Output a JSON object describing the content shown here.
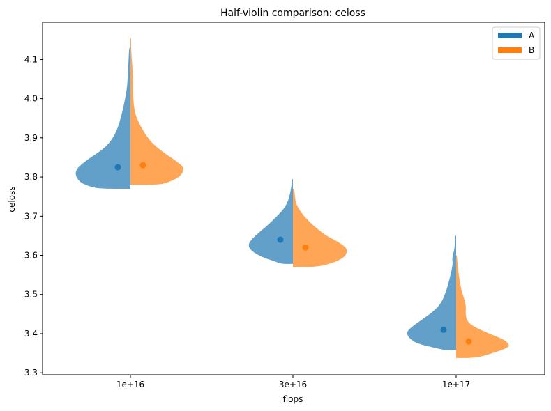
{
  "chart_data": {
    "type": "half-violin",
    "title": "Half-violin comparison: celoss",
    "xlabel": "flops",
    "ylabel": "celoss",
    "categories": [
      "1e+16",
      "3e+16",
      "1e+17"
    ],
    "ylim": [
      3.295,
      4.195
    ],
    "yticks": [
      3.3,
      3.4,
      3.5,
      3.6,
      3.7,
      3.8,
      3.9,
      4.0,
      4.1
    ],
    "ytick_labels": [
      "3.3",
      "3.4",
      "3.5",
      "3.6",
      "3.7",
      "3.8",
      "3.9",
      "4.0",
      "4.1"
    ],
    "grid": false,
    "legend_position": "top-right",
    "series": [
      {
        "name": "A",
        "side": "left",
        "color": "#1f77b4",
        "fill_opacity": 0.7,
        "means": [
          3.825,
          3.64,
          3.41
        ],
        "distributions": [
          {
            "min": 3.77,
            "max": 4.13,
            "profile": [
              [
                3.77,
                0.45
              ],
              [
                3.775,
                0.6
              ],
              [
                3.785,
                0.75
              ],
              [
                3.8,
                0.82
              ],
              [
                3.815,
                0.83
              ],
              [
                3.83,
                0.76
              ],
              [
                3.85,
                0.6
              ],
              [
                3.87,
                0.42
              ],
              [
                3.89,
                0.3
              ],
              [
                3.92,
                0.2
              ],
              [
                3.96,
                0.13
              ],
              [
                4.0,
                0.08
              ],
              [
                4.03,
                0.05
              ],
              [
                4.06,
                0.04
              ],
              [
                4.09,
                0.03
              ],
              [
                4.13,
                0.02
              ]
            ]
          },
          {
            "min": 3.578,
            "max": 3.795,
            "profile": [
              [
                3.578,
                0.18
              ],
              [
                3.585,
                0.28
              ],
              [
                3.595,
                0.46
              ],
              [
                3.61,
                0.62
              ],
              [
                3.625,
                0.68
              ],
              [
                3.64,
                0.63
              ],
              [
                3.66,
                0.5
              ],
              [
                3.68,
                0.36
              ],
              [
                3.7,
                0.24
              ],
              [
                3.72,
                0.13
              ],
              [
                3.74,
                0.07
              ],
              [
                3.76,
                0.04
              ],
              [
                3.78,
                0.02
              ],
              [
                3.795,
                0.01
              ]
            ]
          },
          {
            "min": 3.358,
            "max": 3.65,
            "profile": [
              [
                3.358,
                0.18
              ],
              [
                3.365,
                0.35
              ],
              [
                3.375,
                0.6
              ],
              [
                3.39,
                0.72
              ],
              [
                3.405,
                0.75
              ],
              [
                3.42,
                0.65
              ],
              [
                3.44,
                0.48
              ],
              [
                3.46,
                0.32
              ],
              [
                3.48,
                0.22
              ],
              [
                3.5,
                0.17
              ],
              [
                3.52,
                0.13
              ],
              [
                3.54,
                0.1
              ],
              [
                3.56,
                0.07
              ],
              [
                3.58,
                0.05
              ],
              [
                3.59,
                0.06
              ],
              [
                3.6,
                0.05
              ],
              [
                3.62,
                0.02
              ],
              [
                3.65,
                0.02
              ]
            ]
          }
        ]
      },
      {
        "name": "B",
        "side": "right",
        "color": "#ff7f0e",
        "fill_opacity": 0.7,
        "means": [
          3.83,
          3.62,
          3.38
        ],
        "distributions": [
          {
            "min": 3.78,
            "max": 4.155,
            "profile": [
              [
                3.78,
                0.46
              ],
              [
                3.79,
                0.62
              ],
              [
                3.8,
                0.74
              ],
              [
                3.815,
                0.8
              ],
              [
                3.825,
                0.8
              ],
              [
                3.84,
                0.7
              ],
              [
                3.86,
                0.52
              ],
              [
                3.88,
                0.37
              ],
              [
                3.9,
                0.26
              ],
              [
                3.93,
                0.15
              ],
              [
                3.96,
                0.07
              ],
              [
                4.0,
                0.04
              ],
              [
                4.05,
                0.04
              ],
              [
                4.08,
                0.03
              ],
              [
                4.1,
                0.02
              ],
              [
                4.13,
                0.01
              ],
              [
                4.155,
                0.01
              ]
            ]
          },
          {
            "min": 3.57,
            "max": 3.77,
            "profile": [
              [
                3.57,
                0.35
              ],
              [
                3.58,
                0.6
              ],
              [
                3.595,
                0.78
              ],
              [
                3.61,
                0.82
              ],
              [
                3.62,
                0.8
              ],
              [
                3.635,
                0.68
              ],
              [
                3.65,
                0.5
              ],
              [
                3.67,
                0.35
              ],
              [
                3.69,
                0.22
              ],
              [
                3.71,
                0.12
              ],
              [
                3.73,
                0.05
              ],
              [
                3.75,
                0.03
              ],
              [
                3.77,
                0.02
              ]
            ]
          },
          {
            "min": 3.338,
            "max": 3.6,
            "profile": [
              [
                3.338,
                0.3
              ],
              [
                3.35,
                0.55
              ],
              [
                3.365,
                0.8
              ],
              [
                3.375,
                0.79
              ],
              [
                3.385,
                0.72
              ],
              [
                3.4,
                0.5
              ],
              [
                3.415,
                0.3
              ],
              [
                3.43,
                0.17
              ],
              [
                3.45,
                0.14
              ],
              [
                3.47,
                0.15
              ],
              [
                3.49,
                0.12
              ],
              [
                3.51,
                0.08
              ],
              [
                3.53,
                0.06
              ],
              [
                3.55,
                0.04
              ],
              [
                3.58,
                0.02
              ],
              [
                3.6,
                0.01
              ]
            ]
          }
        ]
      }
    ]
  }
}
